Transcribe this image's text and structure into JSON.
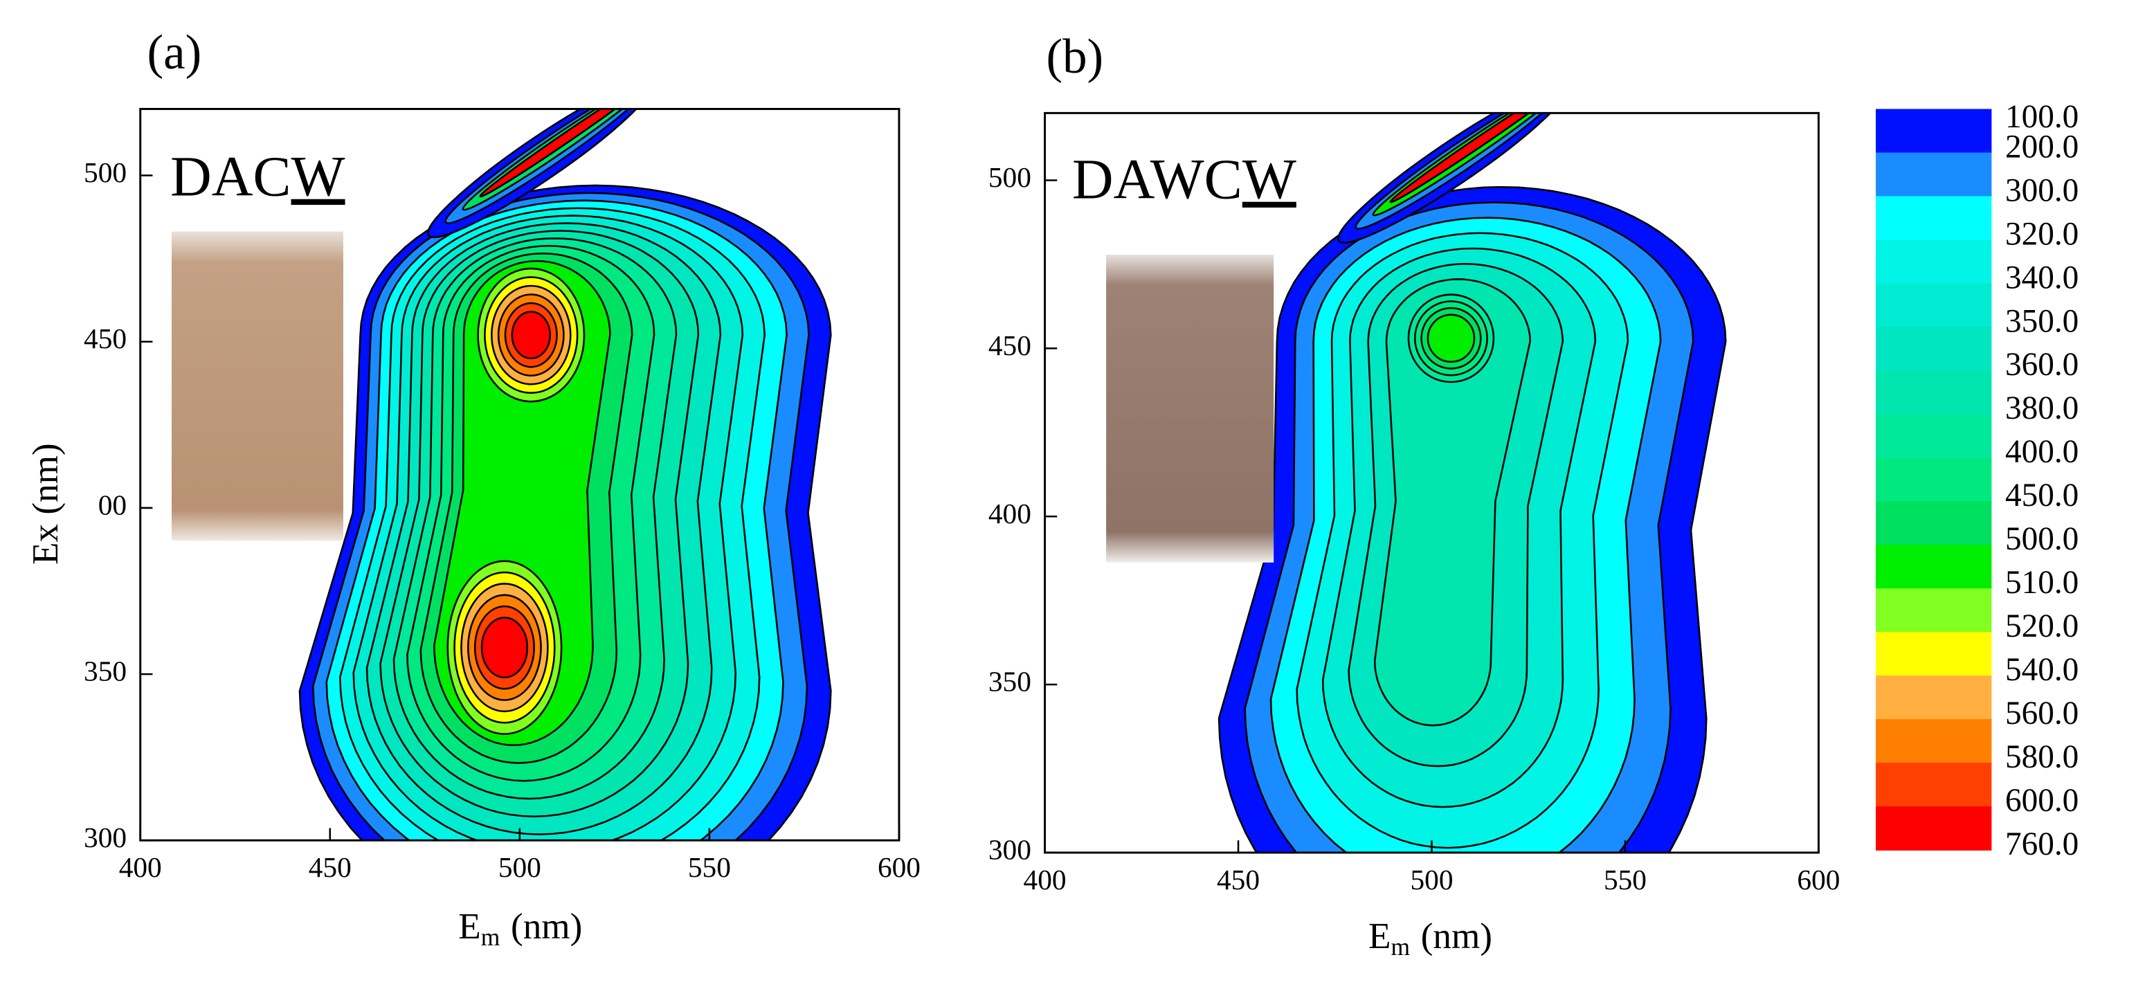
{
  "chart_data": [
    {
      "type": "contour",
      "title": "(a)",
      "sample": [
        "DAC",
        "W"
      ],
      "xlabel": {
        "text": "E",
        "subscript": "m",
        "unit": "(nm)"
      },
      "ylabel": "Ex (nm)",
      "xlim": [
        400,
        600
      ],
      "xticks": [
        400,
        450,
        500,
        550,
        600
      ],
      "ylim": [
        300,
        520
      ],
      "yticks": [
        300,
        350,
        {
          "value": 400,
          "label": "00"
        },
        450,
        500
      ]
    },
    {
      "type": "contour",
      "title": "(b)",
      "sample": [
        "DAWC",
        "W"
      ],
      "xlabel": {
        "text": "E",
        "subscript": "m",
        "unit": "(nm)"
      },
      "xlim": [
        400,
        600
      ],
      "xticks": [
        400,
        450,
        500,
        550,
        600
      ],
      "ylim": [
        300,
        520
      ],
      "yticks": [
        300,
        350,
        400,
        450,
        500
      ]
    }
  ],
  "colorbar": {
    "levels": [
      {
        "value": 100,
        "label": "100.0"
      },
      {
        "value": 200,
        "label": "200.0"
      },
      {
        "value": 300,
        "label": "300.0"
      },
      {
        "value": 320,
        "label": "320.0"
      },
      {
        "value": 340,
        "label": "340.0"
      },
      {
        "value": 350,
        "label": "350.0"
      },
      {
        "value": 360,
        "label": "360.0"
      },
      {
        "value": 380,
        "label": "380.0"
      },
      {
        "value": 400,
        "label": "400.0"
      },
      {
        "value": 450,
        "label": "450.0"
      },
      {
        "value": 500,
        "label": "500.0"
      },
      {
        "value": 510,
        "label": "510.0"
      },
      {
        "value": 520,
        "label": "520.0"
      },
      {
        "value": 540,
        "label": "540.0"
      },
      {
        "value": 560,
        "label": "560.0"
      },
      {
        "value": 580,
        "label": "580.0"
      },
      {
        "value": 600,
        "label": "600.0"
      },
      {
        "value": 760,
        "label": "760.0"
      }
    ],
    "colors": [
      "#0010ff",
      "#1a8cff",
      "#00ffff",
      "#00f5e6",
      "#00ecd2",
      "#00e6c0",
      "#00e6ae",
      "#00e89a",
      "#00e880",
      "#00e060",
      "#00ee00",
      "#80ff20",
      "#ffff00",
      "#ffb040",
      "#ff8000",
      "#ff4000",
      "#ff0000"
    ]
  }
}
